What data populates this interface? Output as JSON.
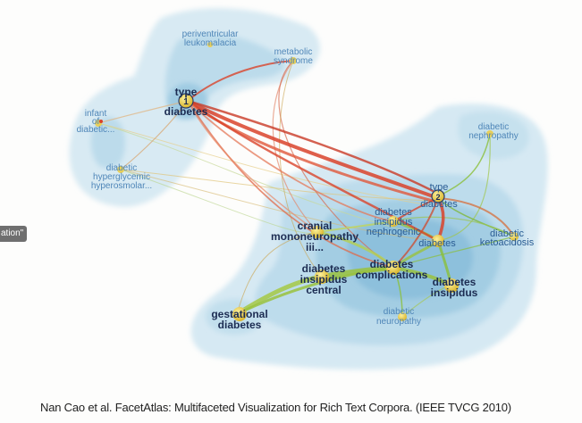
{
  "side_tab": "ation\"",
  "caption": "Nan Cao et al. FacetAtlas: Multifaceted Visualization for Rich Text Corpora. (IEEE TVCG 2010)",
  "colors": {
    "background": "#fdfdfc",
    "cluster_light": "#cfe4ef",
    "cluster_mid": "#a9d0e4",
    "cluster_dark": "#7fb6d6",
    "edge_red": "#d9432b",
    "edge_green": "#8bbf3a",
    "edge_yellow": "#e0c14a",
    "node_yellow": "#f2d44a"
  },
  "diagram": {
    "nodes": [
      {
        "id": "periventricular",
        "lines": [
          "periventricular",
          "leukomalacia"
        ],
        "style": "small"
      },
      {
        "id": "metabolic",
        "lines": [
          "metabolic",
          "syndrome"
        ],
        "style": "small"
      },
      {
        "id": "type1",
        "lines": [
          "type",
          "diabetes"
        ],
        "badge": "1",
        "style": "big"
      },
      {
        "id": "infant",
        "lines": [
          "infant",
          "of",
          "diabetic..."
        ],
        "style": "small"
      },
      {
        "id": "hyperglycemic",
        "lines": [
          "diabetic",
          "hyperglycemic",
          "hyperosmolar..."
        ],
        "style": "small"
      },
      {
        "id": "nephropathy",
        "lines": [
          "diabetic",
          "nephropathy"
        ],
        "style": "small"
      },
      {
        "id": "type2",
        "lines": [
          "type",
          "diabetes"
        ],
        "badge": "2",
        "style": "mid"
      },
      {
        "id": "insipidus_neph",
        "lines": [
          "diabetes",
          "insipidus",
          "nephrogenic"
        ],
        "style": "mid"
      },
      {
        "id": "diabetes",
        "lines": [
          "diabetes"
        ],
        "style": "mid"
      },
      {
        "id": "ketoacidosis",
        "lines": [
          "diabetic",
          "ketoacidosis"
        ],
        "style": "mid"
      },
      {
        "id": "cranial",
        "lines": [
          "cranial",
          "mononeuropathy",
          "iii..."
        ],
        "style": "big"
      },
      {
        "id": "insipidus_central",
        "lines": [
          "diabetes",
          "insipidus",
          "central"
        ],
        "style": "big"
      },
      {
        "id": "complications",
        "lines": [
          "diabetes",
          "complications"
        ],
        "style": "big"
      },
      {
        "id": "insipidus",
        "lines": [
          "diabetes",
          "insipidus"
        ],
        "style": "big"
      },
      {
        "id": "neuropathy",
        "lines": [
          "diabetic",
          "neuropathy"
        ],
        "style": "small"
      },
      {
        "id": "gestational",
        "lines": [
          "gestational",
          "diabetes"
        ],
        "style": "big"
      }
    ]
  }
}
